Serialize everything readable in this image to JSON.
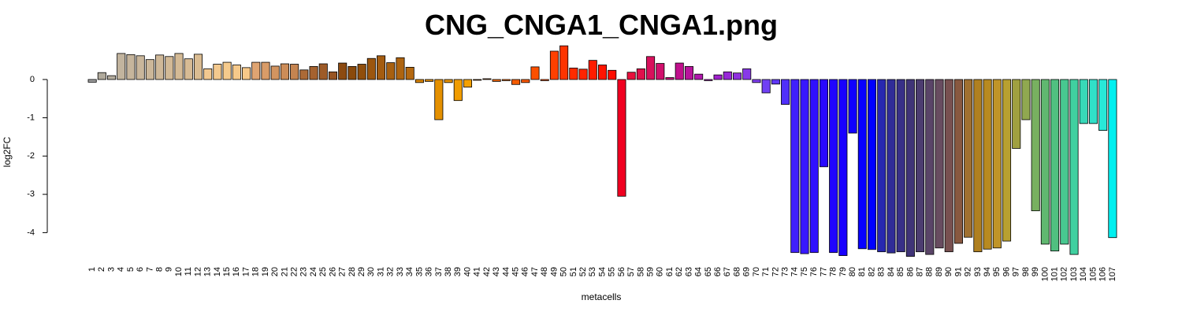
{
  "chart_data": {
    "type": "bar",
    "title": "CNG_CNGA1_CNGA1.png",
    "x_label": "metacells",
    "y_label": "log2FC",
    "categories": [
      "1",
      "2",
      "3",
      "4",
      "5",
      "6",
      "7",
      "8",
      "9",
      "10",
      "11",
      "12",
      "13",
      "14",
      "15",
      "16",
      "17",
      "18",
      "19",
      "20",
      "21",
      "22",
      "23",
      "24",
      "25",
      "26",
      "27",
      "28",
      "29",
      "30",
      "31",
      "32",
      "33",
      "34",
      "35",
      "36",
      "37",
      "38",
      "39",
      "40",
      "41",
      "42",
      "43",
      "44",
      "45",
      "46",
      "47",
      "48",
      "49",
      "50",
      "51",
      "52",
      "53",
      "54",
      "55",
      "56",
      "57",
      "58",
      "59",
      "60",
      "61",
      "62",
      "63",
      "64",
      "65",
      "66",
      "67",
      "68",
      "69",
      "70",
      "71",
      "72",
      "73",
      "74",
      "75",
      "76",
      "77",
      "78",
      "79",
      "80",
      "81",
      "82",
      "83",
      "84",
      "85",
      "86",
      "87",
      "88",
      "89",
      "90",
      "91",
      "92",
      "93",
      "94",
      "95",
      "96",
      "97",
      "98",
      "99",
      "100",
      "101",
      "102",
      "103",
      "104",
      "105",
      "106",
      "107"
    ],
    "values": [
      -0.07,
      0.18,
      0.1,
      0.68,
      0.65,
      0.62,
      0.52,
      0.64,
      0.6,
      0.68,
      0.54,
      0.66,
      0.28,
      0.4,
      0.45,
      0.38,
      0.31,
      0.45,
      0.45,
      0.35,
      0.41,
      0.4,
      0.25,
      0.34,
      0.41,
      0.2,
      0.43,
      0.34,
      0.4,
      0.55,
      0.62,
      0.44,
      0.57,
      0.32,
      -0.08,
      -0.05,
      -1.05,
      -0.08,
      -0.55,
      -0.2,
      -0.02,
      0.02,
      -0.05,
      -0.03,
      -0.13,
      -0.08,
      0.33,
      -0.03,
      0.74,
      0.88,
      0.3,
      0.27,
      0.5,
      0.38,
      0.24,
      -3.05,
      0.19,
      0.28,
      0.6,
      0.42,
      0.05,
      0.43,
      0.34,
      0.14,
      -0.03,
      0.12,
      0.2,
      0.17,
      0.28,
      -0.08,
      -0.35,
      -0.12,
      -0.65,
      -4.52,
      -4.55,
      -4.52,
      -2.28,
      -4.52,
      -4.6,
      -1.4,
      -4.42,
      -4.44,
      -4.5,
      -4.53,
      -4.5,
      -4.62,
      -4.5,
      -4.57,
      -4.4,
      -4.5,
      -4.28,
      -4.12,
      -4.5,
      -4.43,
      -4.4,
      -4.22,
      -1.8,
      -1.05,
      -3.43,
      -4.3,
      -4.48,
      -4.3,
      -4.57,
      -1.15,
      -1.15,
      -1.33,
      -4.13
    ],
    "colors": [
      "#9e9e9e",
      "#b0aa9c",
      "#b5ad9e",
      "#c2b49e",
      "#c6b59c",
      "#c9b69b",
      "#ccb799",
      "#cfb898",
      "#d2b996",
      "#d4ba95",
      "#d7bb94",
      "#dabc92",
      "#f2c890",
      "#f4c98e",
      "#f5ca8c",
      "#f6c98a",
      "#f7c888",
      "#dfa472",
      "#d99c68",
      "#d29460",
      "#cc8c58",
      "#c58450",
      "#ac6a36",
      "#a5622f",
      "#9e5b28",
      "#985422",
      "#8c4a10",
      "#8a4a0c",
      "#904e0c",
      "#9c560e",
      "#a45c10",
      "#a86010",
      "#ae6410",
      "#b46810",
      "#d88400",
      "#e08c00",
      "#e49000",
      "#e89400",
      "#f09c00",
      "#f4a000",
      "#e46c00",
      "#e86800",
      "#ec6400",
      "#f06000",
      "#f45c00",
      "#f85800",
      "#fc5000",
      "#ff4800",
      "#ff4000",
      "#ff3400",
      "#ff2c00",
      "#ff2400",
      "#ff1c00",
      "#ff1400",
      "#ff0c00",
      "#f00020",
      "#e8103c",
      "#e0104c",
      "#d8105c",
      "#d0106c",
      "#c8107c",
      "#c0108c",
      "#b8149c",
      "#b018ac",
      "#a81cbc",
      "#a020cc",
      "#9828d8",
      "#9030e0",
      "#8838e8",
      "#8040f0",
      "#7040f4",
      "#6038f8",
      "#5030fa",
      "#4020fc",
      "#3818fd",
      "#3010fe",
      "#2808ff",
      "#2004ff",
      "#1800ff",
      "#1000ff",
      "#0800ff",
      "#0000ff",
      "#2828b0",
      "#302c98",
      "#383088",
      "#403478",
      "#4c3c70",
      "#5a4468",
      "#684c60",
      "#785050",
      "#885840",
      "#a07030",
      "#b08020",
      "#b88a20",
      "#c09428",
      "#b8a030",
      "#a0a040",
      "#90a850",
      "#78b060",
      "#60b870",
      "#50c080",
      "#48c890",
      "#40d0a0",
      "#38d8b8",
      "#30e0c8",
      "#28e8d8",
      "#00f0f0"
    ],
    "ylim": [
      -4.65,
      0.9
    ],
    "yticks": [
      -4,
      -3,
      -2,
      -1,
      0
    ]
  }
}
